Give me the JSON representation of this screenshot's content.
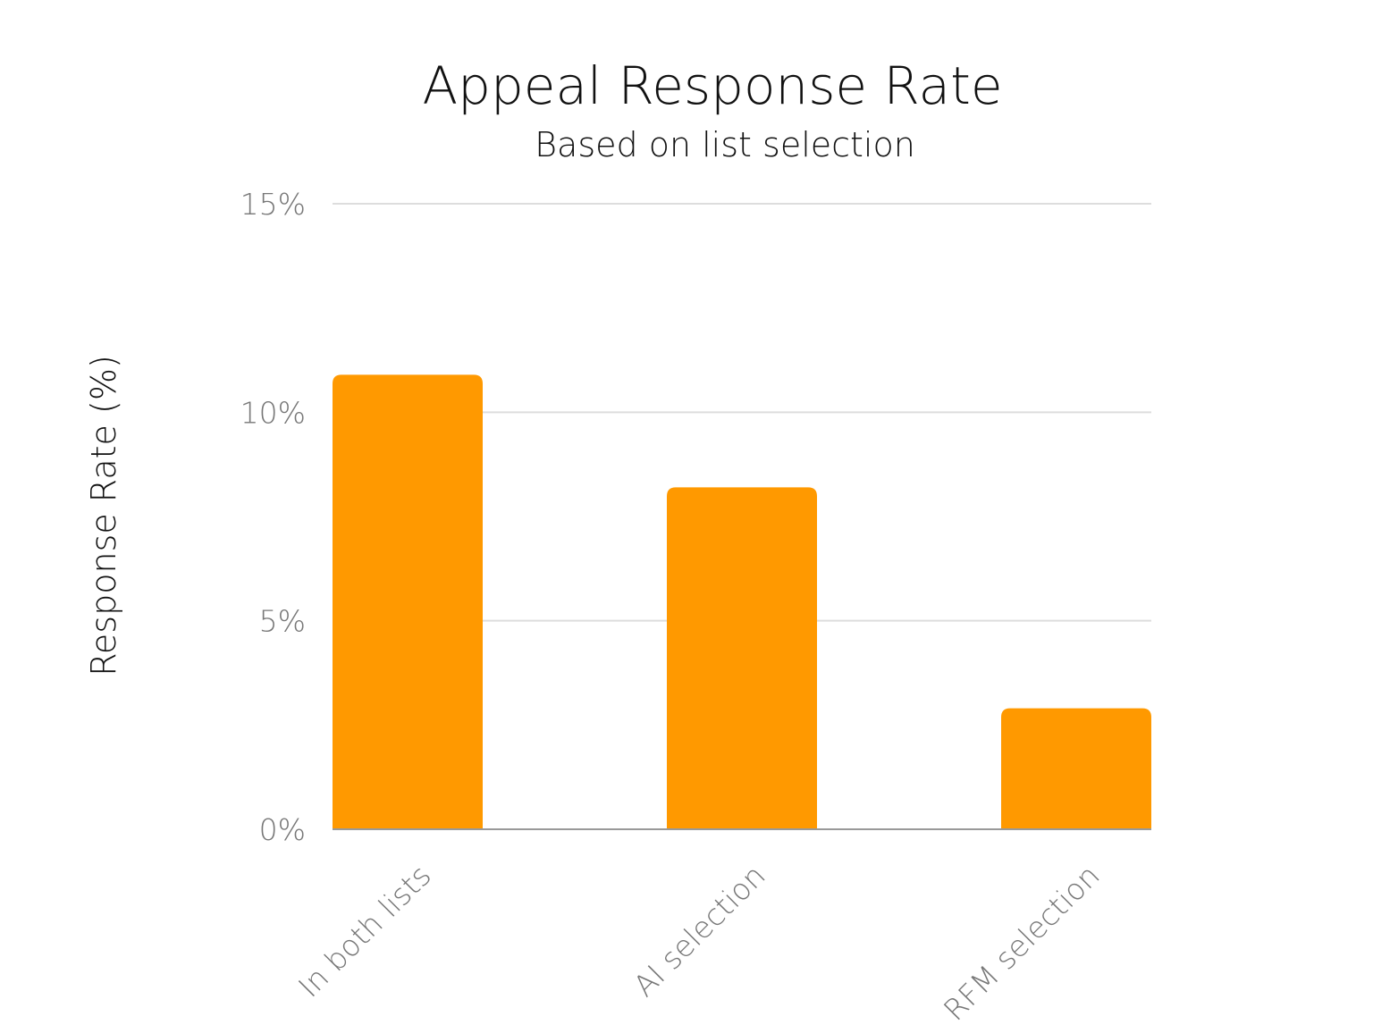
{
  "chart_data": {
    "type": "bar",
    "title": "Appeal Response Rate",
    "subtitle": "Based on list selection",
    "xlabel": "",
    "ylabel": "Response Rate (%)",
    "categories": [
      "In both lists",
      "AI selection",
      "RFM selection"
    ],
    "values": [
      10.9,
      8.2,
      2.9
    ],
    "ylim": [
      0,
      15
    ],
    "yticks": [
      0,
      5,
      10,
      15
    ],
    "ytick_labels": [
      "0%",
      "5%",
      "10%",
      "15%"
    ],
    "grid": true,
    "legend": "none",
    "bar_color": "#FF9900"
  }
}
